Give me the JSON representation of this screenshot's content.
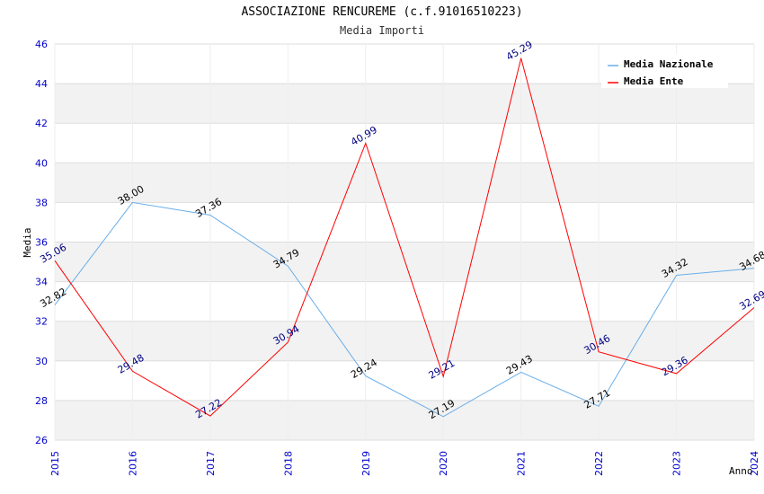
{
  "header": {
    "title": "ASSOCIAZIONE RENCUREME (c.f.91016510223)",
    "subtitle": "Media Importi"
  },
  "colors": {
    "nazionale": "#6aaee8",
    "ente": "#ff0000",
    "band": "#f2f2f2",
    "grid": "#dddddd",
    "tick": "#0000cc"
  },
  "chart_data": {
    "type": "line",
    "title": "ASSOCIAZIONE RENCUREME (c.f.91016510223)",
    "subtitle": "Media Importi",
    "xlabel": "Anno",
    "ylabel": "Media",
    "ylim": [
      26,
      46
    ],
    "yticks": [
      26,
      28,
      30,
      32,
      34,
      36,
      38,
      40,
      42,
      44,
      46
    ],
    "x": [
      "2015",
      "2016",
      "2017",
      "2018",
      "2019",
      "2020",
      "2021",
      "2022",
      "2023",
      "2024"
    ],
    "legend_position": "top-right",
    "series": [
      {
        "name": "Media Nazionale",
        "values": [
          32.82,
          38.0,
          37.36,
          34.79,
          29.24,
          27.19,
          29.43,
          27.71,
          34.32,
          34.68
        ],
        "labels": [
          "32.82",
          "38.00",
          "37.36",
          "34.79",
          "29.24",
          "27.19",
          "29.43",
          "27.71",
          "34.32",
          "34.68"
        ]
      },
      {
        "name": "Media Ente",
        "values": [
          35.06,
          29.48,
          27.22,
          30.94,
          40.99,
          29.21,
          45.29,
          30.46,
          29.36,
          32.69
        ],
        "labels": [
          "35.06",
          "29.48",
          "27.22",
          "30.94",
          "40.99",
          "29.21",
          "45.29",
          "30.46",
          "29.36",
          "32.69"
        ]
      }
    ]
  }
}
